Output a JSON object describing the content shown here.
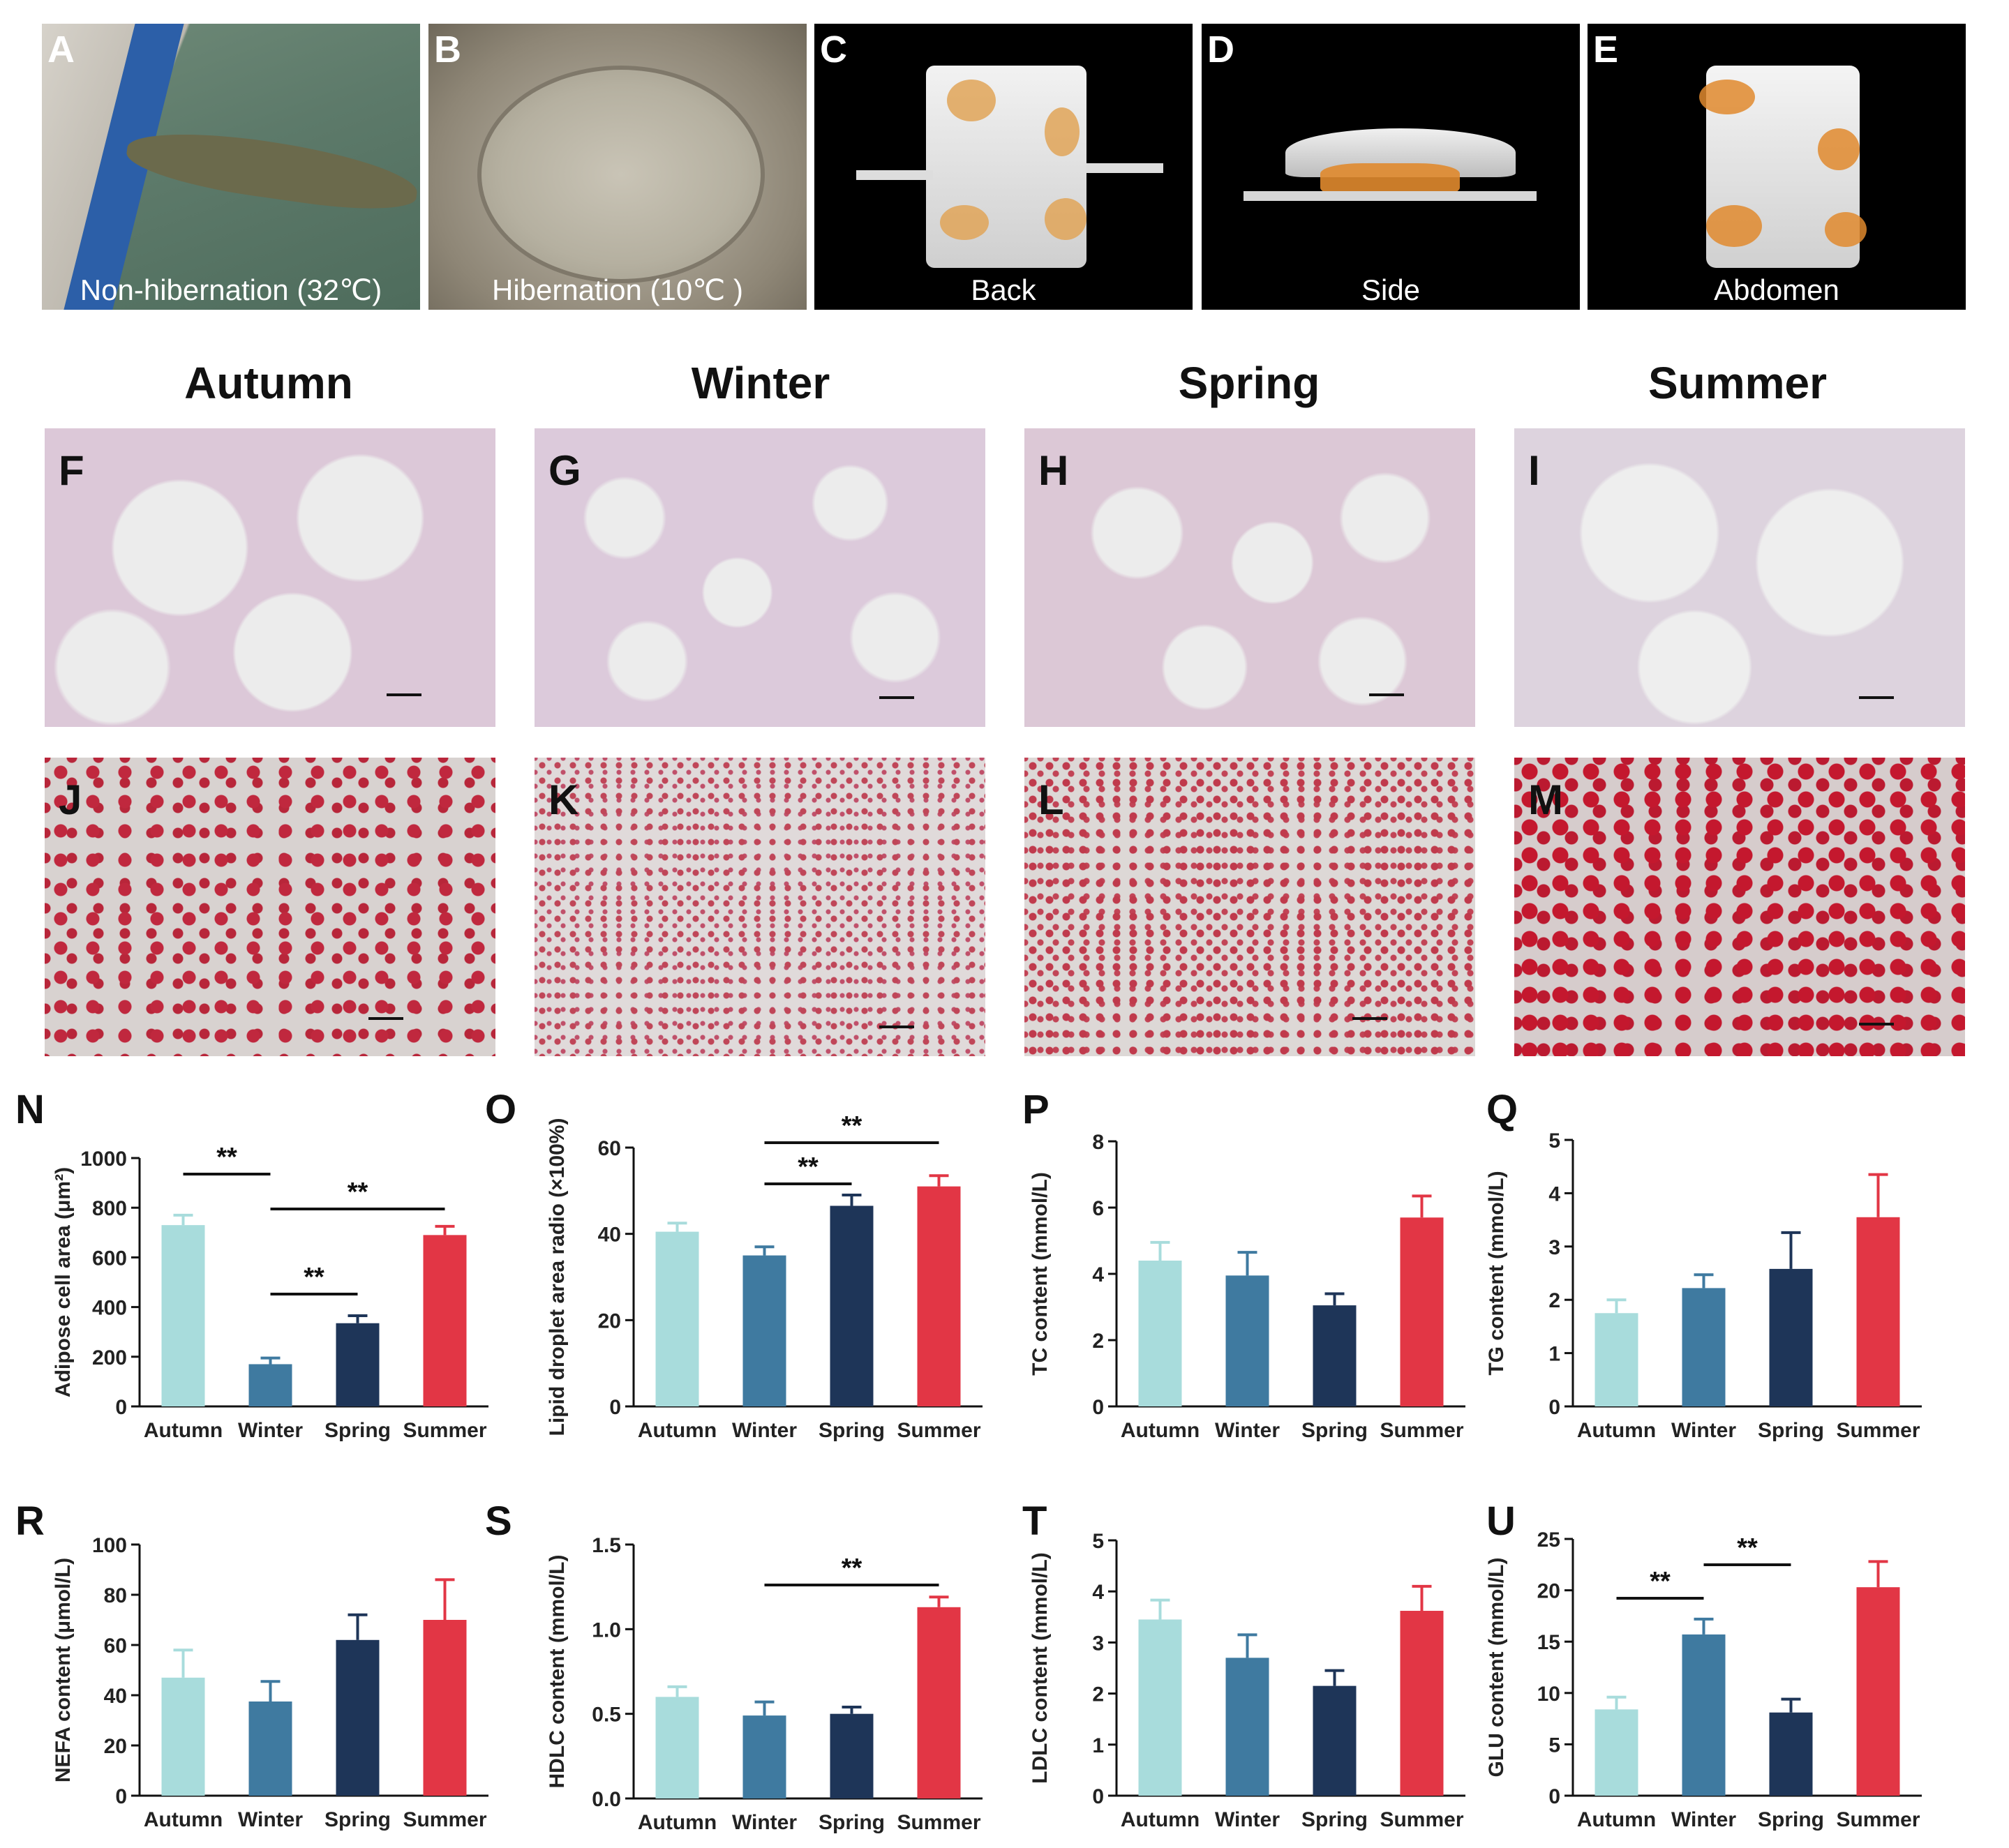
{
  "photos": [
    {
      "letter": "A",
      "caption": "Non-hibernation (32℃)"
    },
    {
      "letter": "B",
      "caption": "Hibernation (10℃ )"
    },
    {
      "letter": "C",
      "caption": "Back"
    },
    {
      "letter": "D",
      "caption": "Side"
    },
    {
      "letter": "E",
      "caption": "Abdomen"
    }
  ],
  "seasons": [
    "Autumn",
    "Winter",
    "Spring",
    "Summer"
  ],
  "he_labels": [
    "F",
    "G",
    "H",
    "I"
  ],
  "oro_labels": [
    "J",
    "K",
    "L",
    "M"
  ],
  "colors": {
    "Autumn": "#a8dcdc",
    "Winter": "#3f7aa0",
    "Spring": "#1e3558",
    "Summer": "#e23645"
  },
  "chart_data": [
    {
      "panel": "N",
      "type": "bar",
      "categories": [
        "Autumn",
        "Winter",
        "Spring",
        "Summer"
      ],
      "values": [
        730,
        170,
        335,
        690
      ],
      "errors": [
        40,
        25,
        30,
        35
      ],
      "ylabel": "Adipose cell area (μm²)",
      "ylim": [
        0,
        1000
      ],
      "yticks": [
        0,
        200,
        400,
        600,
        800,
        1000
      ],
      "sig": [
        {
          "from": 0,
          "to": 1,
          "label": "**"
        },
        {
          "from": 1,
          "to": 2,
          "label": "**"
        },
        {
          "from": 1,
          "to": 3,
          "label": "**"
        }
      ]
    },
    {
      "panel": "O",
      "type": "bar",
      "categories": [
        "Autumn",
        "Winter",
        "Spring",
        "Summer"
      ],
      "values": [
        40.5,
        35,
        46.5,
        51
      ],
      "errors": [
        2,
        2,
        2.5,
        2.5
      ],
      "ylabel": "Lipid droplet area radio (×100%)",
      "ylim": [
        0,
        60
      ],
      "yticks": [
        0,
        20,
        40,
        60
      ],
      "sig": [
        {
          "from": 1,
          "to": 2,
          "label": "**"
        },
        {
          "from": 1,
          "to": 3,
          "label": "**"
        }
      ]
    },
    {
      "panel": "P",
      "type": "bar",
      "categories": [
        "Autumn",
        "Winter",
        "Spring",
        "Summer"
      ],
      "values": [
        4.4,
        3.95,
        3.05,
        5.7
      ],
      "errors": [
        0.55,
        0.7,
        0.35,
        0.65
      ],
      "ylabel": "TC content (mmol/L)",
      "ylim": [
        0,
        8
      ],
      "yticks": [
        0,
        2,
        4,
        6,
        8
      ],
      "sig": []
    },
    {
      "panel": "Q",
      "type": "bar",
      "categories": [
        "Autumn",
        "Winter",
        "Spring",
        "Summer"
      ],
      "values": [
        1.75,
        2.22,
        2.58,
        3.55
      ],
      "errors": [
        0.25,
        0.25,
        0.68,
        0.8
      ],
      "ylabel": "TG content (mmol/L)",
      "ylim": [
        0,
        5
      ],
      "yticks": [
        0,
        1,
        2,
        3,
        4,
        5
      ],
      "sig": []
    },
    {
      "panel": "R",
      "type": "bar",
      "categories": [
        "Autumn",
        "Winter",
        "Spring",
        "Summer"
      ],
      "values": [
        47,
        37.5,
        62,
        70
      ],
      "errors": [
        11,
        8,
        10,
        16
      ],
      "ylabel": "NEFA content (μmol/L)",
      "ylim": [
        0,
        100
      ],
      "yticks": [
        0,
        20,
        40,
        60,
        80,
        100
      ],
      "sig": []
    },
    {
      "panel": "S",
      "type": "bar",
      "categories": [
        "Autumn",
        "Winter",
        "Spring",
        "Summer"
      ],
      "values": [
        0.6,
        0.49,
        0.5,
        1.13
      ],
      "errors": [
        0.06,
        0.08,
        0.04,
        0.06
      ],
      "ylabel": "HDLC content (mmol/L)",
      "ylim": [
        0,
        1.5
      ],
      "yticks": [
        "0.0",
        "0.5",
        "1.0",
        "1.5"
      ],
      "sig": [
        {
          "from": 1,
          "to": 3,
          "label": "**"
        }
      ]
    },
    {
      "panel": "T",
      "type": "bar",
      "categories": [
        "Autumn",
        "Winter",
        "Spring",
        "Summer"
      ],
      "values": [
        3.45,
        2.7,
        2.15,
        3.62
      ],
      "errors": [
        0.38,
        0.45,
        0.3,
        0.48
      ],
      "ylabel": "LDLC content (mmol/L)",
      "ylim": [
        0,
        5
      ],
      "yticks": [
        0,
        1,
        2,
        3,
        4,
        5
      ],
      "sig": []
    },
    {
      "panel": "U",
      "type": "bar",
      "categories": [
        "Autumn",
        "Winter",
        "Spring",
        "Summer"
      ],
      "values": [
        8.4,
        15.7,
        8.1,
        20.3
      ],
      "errors": [
        1.2,
        1.5,
        1.3,
        2.5
      ],
      "ylabel": "GLU content (mmol/L)",
      "ylim": [
        0,
        25
      ],
      "yticks": [
        0,
        5,
        10,
        15,
        20,
        25
      ],
      "sig": [
        {
          "from": 0,
          "to": 1,
          "label": "**"
        },
        {
          "from": 1,
          "to": 2,
          "label": "**"
        }
      ]
    }
  ]
}
